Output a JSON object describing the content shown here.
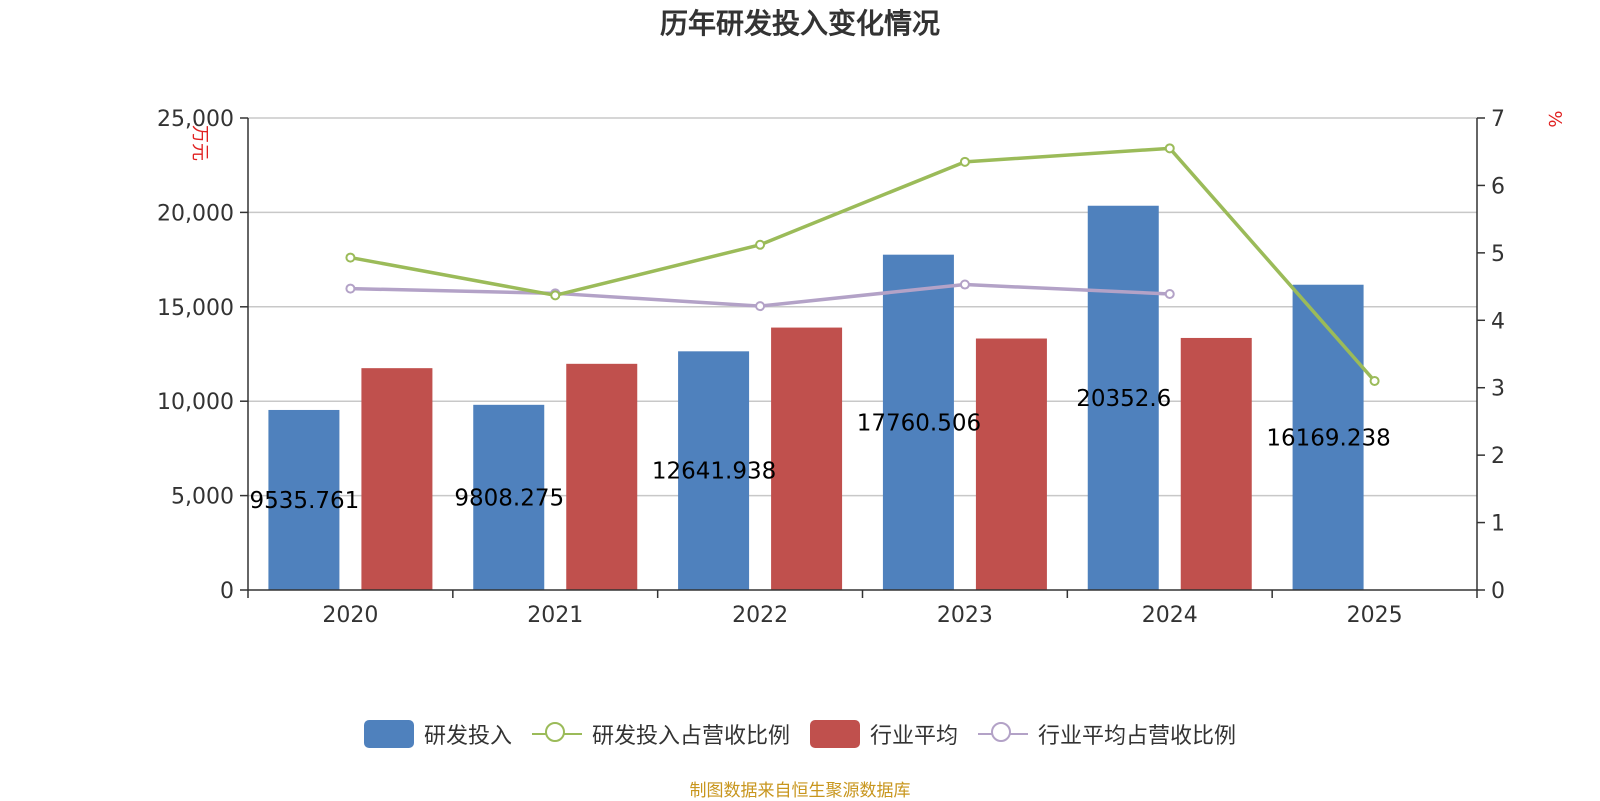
{
  "title": "历年研发投入变化情况",
  "source": "制图数据来自恒生聚源数据库",
  "colors": {
    "rd": "#4f81bd",
    "industry": "#c0504d",
    "rd_ratio": "#9bbb59",
    "industry_ratio": "#b3a2c7"
  },
  "chart_data": {
    "type": "bar",
    "categories": [
      "2020",
      "2021",
      "2022",
      "2023",
      "2024",
      "2025"
    ],
    "y_left": {
      "label": "万元",
      "min": 0,
      "max": 25000,
      "ticks": [
        0,
        5000,
        10000,
        15000,
        20000,
        25000
      ],
      "tick_labels": [
        "0",
        "5,000",
        "10,000",
        "15,000",
        "20,000",
        "25,000"
      ]
    },
    "y_right": {
      "label": "%",
      "min": 0,
      "max": 7,
      "ticks": [
        0,
        1,
        2,
        3,
        4,
        5,
        6,
        7
      ],
      "tick_labels": [
        "0",
        "1",
        "2",
        "3",
        "4",
        "5",
        "6",
        "7"
      ]
    },
    "grid": true,
    "legend": "bottom",
    "series": [
      {
        "name": "研发投入",
        "kind": "bar",
        "axis": "left",
        "values": [
          9535.761,
          9808.275,
          12641.938,
          17760.506,
          20352.6,
          16169.238
        ],
        "labels": [
          "9535.761",
          "9808.275",
          "12641.938",
          "17760.506",
          "20352.6",
          "16169.238"
        ]
      },
      {
        "name": "研发投入占营收比例",
        "kind": "line",
        "axis": "right",
        "values": [
          4.93,
          4.37,
          5.12,
          6.35,
          6.55,
          3.1
        ]
      },
      {
        "name": "行业平均",
        "kind": "bar",
        "axis": "left",
        "values": [
          11750,
          11980,
          13900,
          13320,
          13350,
          null
        ]
      },
      {
        "name": "行业平均占营收比例",
        "kind": "line",
        "axis": "right",
        "values": [
          4.47,
          4.4,
          4.21,
          4.53,
          4.39,
          null
        ]
      }
    ]
  }
}
